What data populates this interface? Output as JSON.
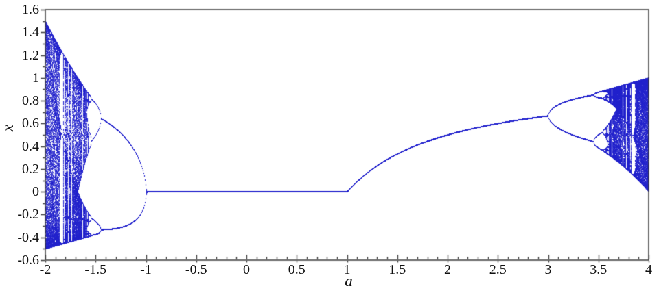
{
  "chart_data": {
    "type": "scatter",
    "subtype": "bifurcation_diagram",
    "title": "",
    "xlabel": "a",
    "ylabel": "x",
    "map_equation": "x[n+1] = a * x[n] * (1 - x[n])",
    "xlim": [
      -2,
      4
    ],
    "ylim": [
      -0.6,
      1.6
    ],
    "x_major_tick_values": [
      -2,
      -1.5,
      -1,
      -0.5,
      0,
      0.5,
      1,
      1.5,
      2,
      2.5,
      3,
      3.5,
      4
    ],
    "x_major_tick_labels": [
      "-2",
      "-1.5",
      "-1",
      "-0.5",
      "0",
      "0.5",
      "1",
      "1.5",
      "2",
      "2.5",
      "3",
      "3.5",
      "4"
    ],
    "y_major_tick_values": [
      1.6,
      1.4,
      1.2,
      1,
      0.8,
      0.6,
      0.4,
      0.2,
      0,
      -0.2,
      -0.4,
      -0.6
    ],
    "y_major_tick_labels": [
      "1.6",
      "1.4",
      "1.2",
      "1",
      "0.8",
      "0.6",
      "0.4",
      "0.2",
      "0",
      "-0.2",
      "-0.4",
      "-0.6"
    ],
    "minor_tick_step": 0.1,
    "grid": false,
    "legend": false,
    "frame_box": true,
    "point_color": "#2222cc",
    "axis_color": "#3d3d3d",
    "label_color": "#111111",
    "background_color": "#ffffff",
    "simulation": {
      "x0": 0.3,
      "transient_iterations": 300,
      "plotted_iterations": 460
    },
    "notable_features": [
      "fixed point x=0 for -1<a<1",
      "branch x=1-1/a for a>1",
      "period-doubling cascade beginning at a=3",
      "chaotic band from a≈3.57 to a=4 with periodic windows (period-3 window near a≈3.83)",
      "mirrored period-doubling cascade for a<-1 with chaos from a≈-1.72 down to a=-2",
      "attractor spans x∈[0,1] at a=4 and x∈[-0.5,1.5] at a=-2"
    ]
  }
}
